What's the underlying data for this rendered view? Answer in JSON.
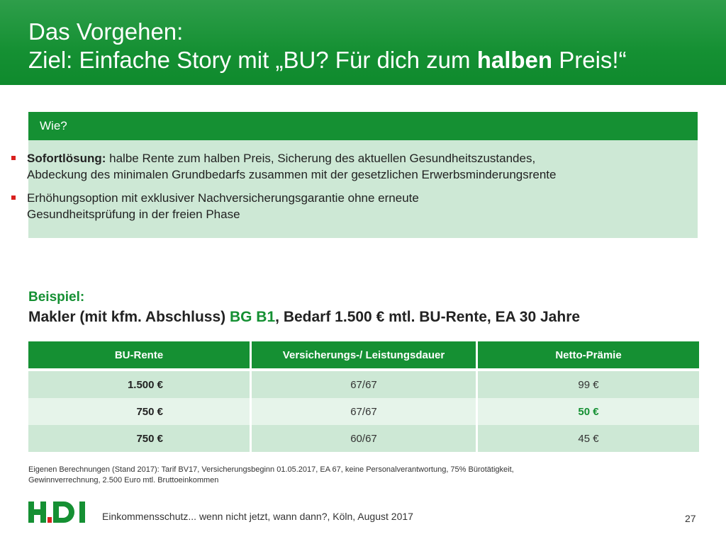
{
  "header": {
    "line1": "Das Vorgehen:",
    "line2_pre": "Ziel: Einfache Story mit „BU? Für dich zum ",
    "line2_bold": "halben",
    "line2_post": " Preis!“"
  },
  "wie": {
    "title": "Wie?",
    "bullet1_bold": "Sofortlösung:",
    "bullet1_line1": " halbe Rente zum halben Preis, Sicherung des aktuellen Gesundheitszustandes,",
    "bullet1_line2": "Abdeckung des minimalen Grundbedarfs zusammen mit der gesetzlichen Erwerbsminderungsrente",
    "bullet2_line1": "Erhöhungsoption mit exklusiver Nachversicherungsgarantie ohne erneute",
    "bullet2_line2": "Gesundheitsprüfung in der freien Phase"
  },
  "example": {
    "label": "Beispiel:",
    "line_pre": "Makler (mit kfm. Abschluss) ",
    "line_green": "BG B1",
    "line_post": ", Bedarf 1.500 € mtl. BU-Rente, EA 30 Jahre"
  },
  "table": {
    "headers": [
      "BU-Rente",
      "Versicherungs-/ Leistungsdauer",
      "Netto-Prämie"
    ],
    "rows": [
      [
        "1.500 €",
        "67/67",
        "99 €"
      ],
      [
        "750 €",
        "67/67",
        "50 €"
      ],
      [
        "750 €",
        "60/67",
        "45 €"
      ]
    ]
  },
  "footnote": {
    "line1": "Eigenen Berechnungen (Stand 2017): Tarif BV17, Versicherungsbeginn 01.05.2017, EA 67, keine Personalverantwortung, 75% Bürotätigkeit,",
    "line2": "Gewinnverrechnung, 2.500 Euro mtl. Bruttoeinkommen"
  },
  "footer": {
    "logo_text": "HDI",
    "text": "Einkommensschutz... wenn nicht jetzt, wann dann?, Köln, August 2017",
    "page": "27"
  },
  "colors": {
    "brand_green": "#159033",
    "light_green": "#cde8d5",
    "bullet_red": "#d9201e"
  }
}
